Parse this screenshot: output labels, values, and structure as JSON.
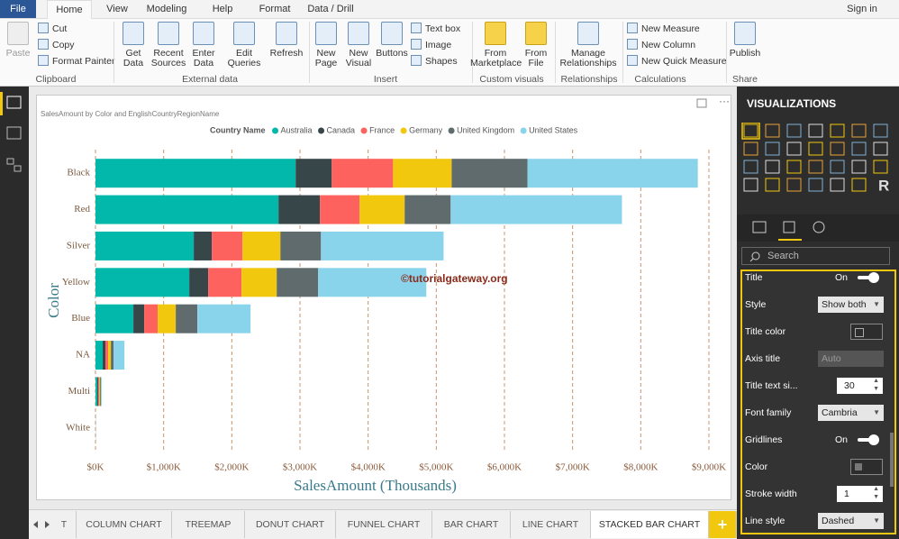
{
  "ribbon": {
    "tabs": [
      "File",
      "Home",
      "View",
      "Modeling",
      "Help",
      "Format",
      "Data / Drill"
    ],
    "sign_in": "Sign in",
    "groups": [
      {
        "label": "Clipboard",
        "buttons": [
          "Paste",
          "Cut",
          "Copy",
          "Format Painter"
        ]
      },
      {
        "label": "External data",
        "buttons": [
          "Get Data",
          "Recent Sources",
          "Enter Data",
          "Edit Queries",
          "Refresh"
        ]
      },
      {
        "label": "Insert",
        "buttons": [
          "New Page",
          "New Visual",
          "Buttons",
          "Text box",
          "Image",
          "Shapes"
        ]
      },
      {
        "label": "Custom visuals",
        "buttons": [
          "From Marketplace",
          "From File"
        ]
      },
      {
        "label": "Relationships",
        "buttons": [
          "Manage Relationships"
        ]
      },
      {
        "label": "Calculations",
        "buttons": [
          "New Measure",
          "New Column",
          "New Quick Measure"
        ]
      },
      {
        "label": "Share",
        "buttons": [
          "Publish"
        ]
      }
    ]
  },
  "chart_data": {
    "type": "stacked-bar-horizontal",
    "title": "SalesAmount by Color and EnglishCountryRegionName",
    "legend_title": "Country Name",
    "x_title": "SalesAmount (Thousands)",
    "y_title": "Color",
    "annotation": "©tutorialgateway.org",
    "categories": [
      "Black",
      "Red",
      "Silver",
      "Yellow",
      "Blue",
      "NA",
      "Multi",
      "White"
    ],
    "series": [
      {
        "name": "Australia",
        "color": "#01b8aa",
        "values": [
          2937,
          2685,
          1442,
          1376,
          556,
          106,
          26,
          1
        ]
      },
      {
        "name": "Canada",
        "color": "#374649",
        "values": [
          529,
          608,
          265,
          278,
          159,
          40,
          13,
          0.5
        ]
      },
      {
        "name": "France",
        "color": "#fd625e",
        "values": [
          900,
          582,
          450,
          489,
          198,
          40,
          13,
          0.5
        ]
      },
      {
        "name": "Germany",
        "color": "#f2c80f",
        "values": [
          860,
          661,
          556,
          516,
          265,
          40,
          13,
          0.5
        ]
      },
      {
        "name": "United Kingdom",
        "color": "#5f6b6d",
        "values": [
          1111,
          675,
          595,
          608,
          317,
          40,
          13,
          0.5
        ]
      },
      {
        "name": "United States",
        "color": "#8ad4eb",
        "values": [
          2500,
          2513,
          1799,
          1587,
          780,
          159,
          13,
          1
        ]
      }
    ],
    "xlim": [
      0,
      9000
    ],
    "xticks": [
      {
        "value": 0,
        "label": "$0K"
      },
      {
        "value": 1000,
        "label": "$1,000K"
      },
      {
        "value": 2000,
        "label": "$2,000K"
      },
      {
        "value": 3000,
        "label": "$3,000K"
      },
      {
        "value": 4000,
        "label": "$4,000K"
      },
      {
        "value": 5000,
        "label": "$5,000K"
      },
      {
        "value": 6000,
        "label": "$6,000K"
      },
      {
        "value": 7000,
        "label": "$7,000K"
      },
      {
        "value": 8000,
        "label": "$8,000K"
      },
      {
        "value": 9000,
        "label": "$9,000K"
      }
    ],
    "grid": true,
    "grid_color": "#c8956c",
    "legend_position": "top"
  },
  "visualizations": {
    "title": "VISUALIZATIONS",
    "r_icon": "R",
    "search": "Search",
    "format": [
      {
        "label": "Title",
        "value": "On"
      },
      {
        "label": "Style",
        "value": "Show both"
      },
      {
        "label": "Title color"
      },
      {
        "label": "Axis title",
        "value": "Auto"
      },
      {
        "label": "Title text si...",
        "value": "30"
      },
      {
        "label": "Font family",
        "value": "Cambria"
      },
      {
        "label": "Gridlines",
        "value": "On"
      },
      {
        "label": "Color"
      },
      {
        "label": "Stroke width",
        "value": "1"
      },
      {
        "label": "Line style",
        "value": "Dashed"
      }
    ]
  },
  "page_tabs": [
    "T",
    "COLUMN CHART",
    "TREEMAP",
    "DONUT CHART",
    "FUNNEL CHART",
    "BAR CHART",
    "LINE CHART",
    "STACKED BAR CHART",
    "+"
  ]
}
